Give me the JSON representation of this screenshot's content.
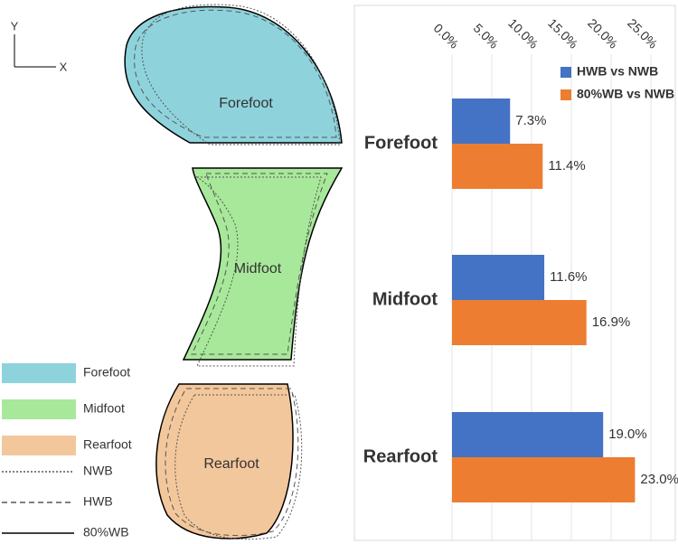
{
  "diagram": {
    "axis_y": "Y",
    "axis_x": "X",
    "regions": [
      "Forefoot",
      "Midfoot",
      "Rearfoot"
    ],
    "legend": {
      "fills": [
        "Forefoot",
        "Midfoot",
        "Rearfoot"
      ],
      "lines": [
        "NWB",
        "HWB",
        "80%WB"
      ]
    }
  },
  "chart_data": {
    "type": "bar",
    "orientation": "horizontal",
    "categories": [
      "Forefoot",
      "Midfoot",
      "Rearfoot"
    ],
    "series": [
      {
        "name": "HWB vs NWB",
        "color": "#4472c4",
        "values": [
          7.3,
          11.6,
          19.0
        ],
        "value_labels": [
          "7.3%",
          "11.6%",
          "19.0%"
        ]
      },
      {
        "name": "80%WB vs NWB",
        "color": "#ed7d31",
        "values": [
          11.4,
          16.9,
          23.0
        ],
        "value_labels": [
          "11.4%",
          "16.9%",
          "23.0%"
        ]
      }
    ],
    "xlim": [
      0,
      25
    ],
    "xticks": [
      {
        "value": 0,
        "label": "0.0%"
      },
      {
        "value": 5,
        "label": "5.0%"
      },
      {
        "value": 10,
        "label": "10.0%"
      },
      {
        "value": 15,
        "label": "15.0%"
      },
      {
        "value": 20,
        "label": "20.0%"
      },
      {
        "value": 25,
        "label": "25.0%"
      }
    ],
    "grid": true,
    "legend": "top-right"
  }
}
